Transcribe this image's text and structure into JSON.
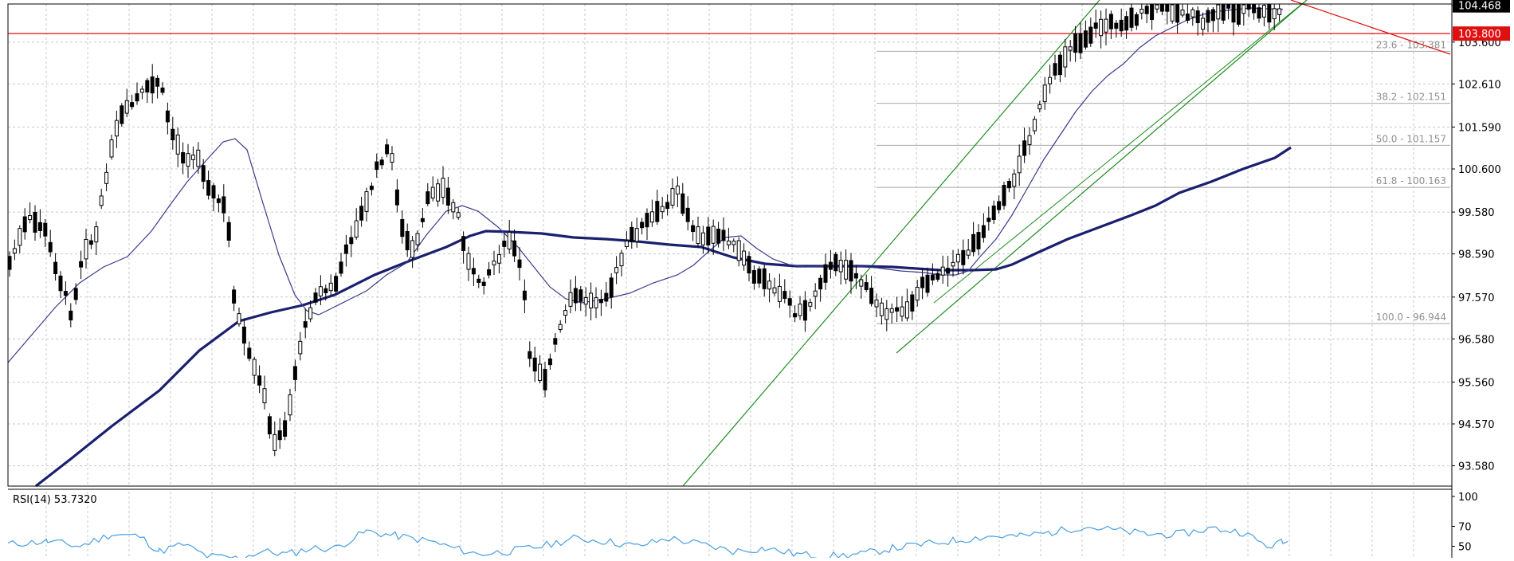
{
  "chart_data": {
    "type": "candlestick",
    "price_axis": {
      "ticks": [
        "93.580",
        "94.570",
        "95.560",
        "96.580",
        "97.570",
        "98.590",
        "99.580",
        "100.600",
        "101.590",
        "102.610",
        "103.600",
        "104.468"
      ],
      "range": [
        93.1,
        104.5
      ]
    },
    "price_tags": [
      {
        "label": "104.468",
        "value": 104.468,
        "color": "#000000",
        "text_color": "#ffffff"
      },
      {
        "label": "103.800",
        "value": 103.8,
        "color": "#e01010",
        "text_color": "#ffffff"
      }
    ],
    "fibonacci": {
      "color": "#a9a9a9",
      "levels": [
        {
          "label": "23.6 - 103.381",
          "value": 103.381
        },
        {
          "label": "38.2 - 102.151",
          "value": 102.151
        },
        {
          "label": "50.0 - 101.157",
          "value": 101.157
        },
        {
          "label": "61.8 - 100.163",
          "value": 100.163
        },
        {
          "label": "100.0 - 96.944",
          "value": 96.944
        }
      ]
    },
    "horizontal_line": {
      "value": 103.8,
      "color": "#e01010"
    },
    "ma_fast_color": "#3a3a8c",
    "ma_slow_color": "#1a1f6e",
    "channel_color": "#1f8b1f",
    "trendline_color": "#e01010",
    "rsi": {
      "label": "RSI(14) 53.7320",
      "ticks": [
        "100",
        "70",
        "50"
      ],
      "range": [
        40,
        100
      ],
      "color": "#4a9fe0"
    }
  }
}
